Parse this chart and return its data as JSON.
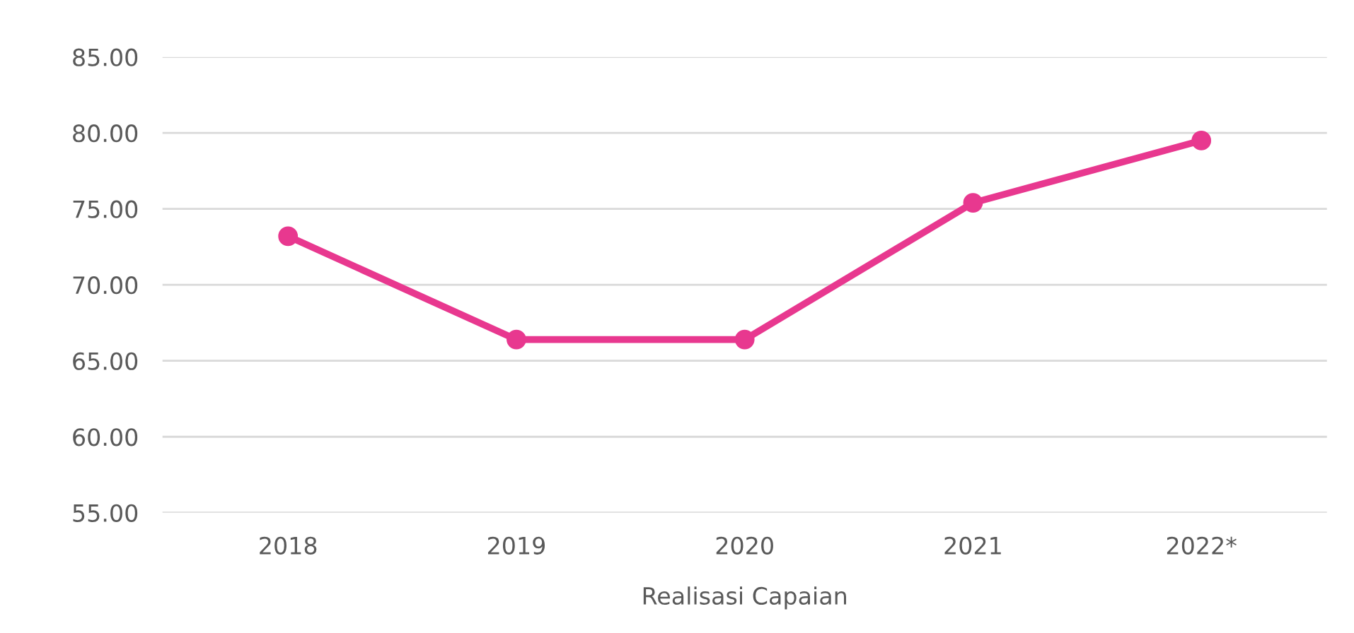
{
  "chart_data": {
    "type": "line",
    "xlabel": "Realisasi Capaian",
    "categories": [
      "2018",
      "2019",
      "2020",
      "2021",
      "2022*"
    ],
    "series": [
      {
        "color": "#e8388f",
        "values": [
          73.2,
          66.4,
          66.4,
          75.4,
          79.5
        ]
      }
    ],
    "ylim": [
      55,
      85
    ],
    "yticks": [
      {
        "value": 55,
        "label": "55.00"
      },
      {
        "value": 60,
        "label": "60.00"
      },
      {
        "value": 65,
        "label": "65.00"
      },
      {
        "value": 70,
        "label": "70.00"
      },
      {
        "value": 75,
        "label": "75.00"
      },
      {
        "value": 80,
        "label": "80.00"
      },
      {
        "value": 85,
        "label": "85.00"
      }
    ],
    "grid": "y",
    "marker": "circle",
    "line_style": "solid",
    "legend": false
  }
}
